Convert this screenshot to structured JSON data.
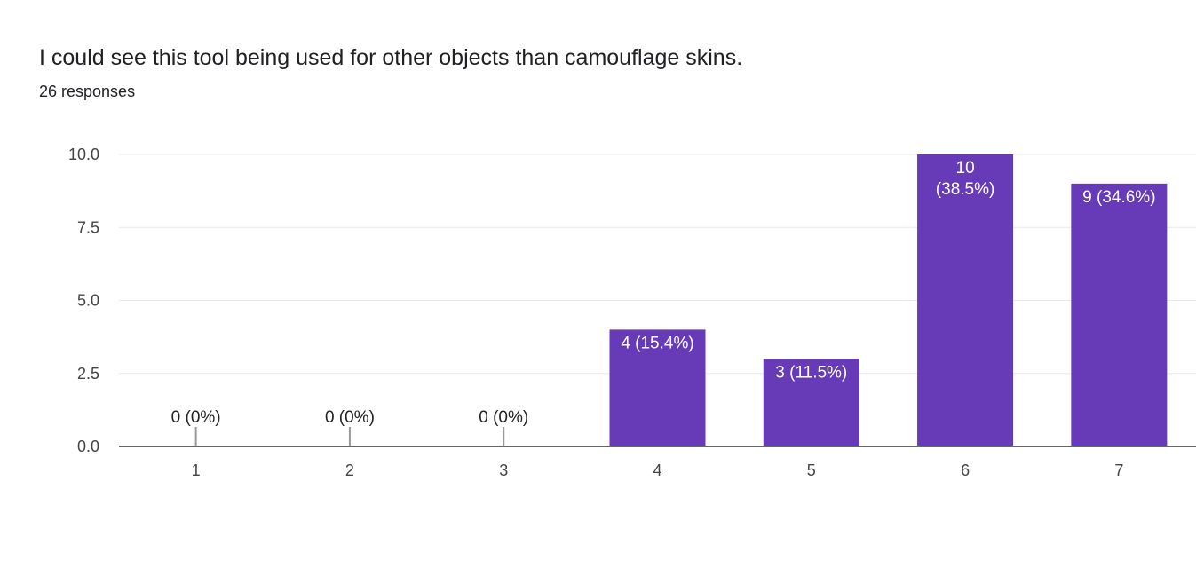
{
  "header": {
    "question": "I could see this tool being used for other objects than camouflage skins.",
    "responses": "26 responses"
  },
  "chart_data": {
    "type": "bar",
    "categories": [
      "1",
      "2",
      "3",
      "4",
      "5",
      "6",
      "7"
    ],
    "values": [
      0,
      0,
      0,
      4,
      3,
      10,
      9
    ],
    "data_labels": [
      "0 (0%)",
      "0 (0%)",
      "0 (0%)",
      "4 (15.4%)",
      "3 (11.5%)",
      "10\n(38.5%)",
      "9 (34.6%)"
    ],
    "title": "I could see this tool being used for other objects than camouflage skins.",
    "subtitle": "26 responses",
    "xlabel": "",
    "ylabel": "",
    "ylim": [
      0,
      10
    ],
    "yticks": [
      "0.0",
      "2.5",
      "5.0",
      "7.5",
      "10.0"
    ],
    "ytick_values": [
      0,
      2.5,
      5,
      7.5,
      10
    ],
    "grid": true,
    "legend": "none",
    "bar_color": "#673ab7",
    "grid_color": "#e8e8e8",
    "axis_color": "#333333",
    "zero_marker_color": "#999999"
  }
}
